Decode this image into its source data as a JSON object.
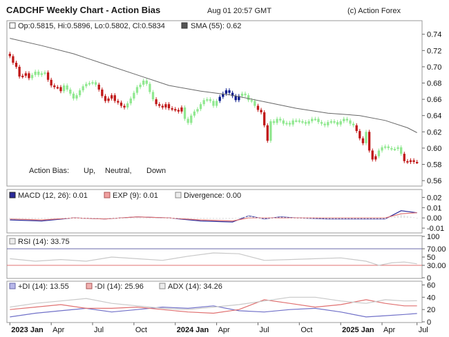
{
  "header": {
    "title": "CADCHF Weekly Chart - Action Bias",
    "timestamp": "Aug 01 20:57 GMT",
    "copyright": "(c) Action Forex"
  },
  "colors": {
    "up": "#0a1a8c",
    "neutral": "#90e890",
    "down": "#c01818",
    "sma": "#666666",
    "macd": "#2a2a9a",
    "macd_signal": "#e07070",
    "rsi": "#c8c8c8",
    "rsi_ref": "#6a6aa8",
    "plus_di": "#7070c8",
    "minus_di": "#e07070",
    "adx": "#c8c8c8",
    "frame": "#999999"
  },
  "x_axis": {
    "labels": [
      "2023 Jan",
      "Apr",
      "Jul",
      "Oct",
      "2024 Jan",
      "Apr",
      "Jul",
      "Oct",
      "2025 Jan",
      "Apr",
      "Jul"
    ]
  },
  "chart_data": [
    {
      "type": "ohlc",
      "name": "price",
      "legend": {
        "ohlc": "Op:0.5815, Hi:0.5896, Lo:0.5802, Cl:0.5834",
        "sma": "SMA (55): 0.62"
      },
      "bias_legend": {
        "label": "Action Bias:",
        "up": "Up,",
        "neutral": "Neutral,",
        "down": "Down"
      },
      "y_ticks": [
        "0.74",
        "0.72",
        "0.70",
        "0.68",
        "0.66",
        "0.64",
        "0.62",
        "0.60",
        "0.58",
        "0.56"
      ],
      "ylim": [
        0.555,
        0.755
      ],
      "closes": [
        0.713,
        0.705,
        0.7,
        0.688,
        0.689,
        0.692,
        0.686,
        0.69,
        0.694,
        0.69,
        0.692,
        0.693,
        0.684,
        0.677,
        0.675,
        0.675,
        0.67,
        0.677,
        0.672,
        0.667,
        0.661,
        0.665,
        0.671,
        0.676,
        0.679,
        0.68,
        0.681,
        0.678,
        0.672,
        0.664,
        0.658,
        0.661,
        0.665,
        0.658,
        0.656,
        0.652,
        0.65,
        0.655,
        0.661,
        0.668,
        0.675,
        0.678,
        0.683,
        0.679,
        0.669,
        0.66,
        0.654,
        0.652,
        0.65,
        0.654,
        0.649,
        0.648,
        0.647,
        0.645,
        0.65,
        0.636,
        0.631,
        0.64,
        0.645,
        0.648,
        0.654,
        0.659,
        0.66,
        0.658,
        0.652,
        0.658,
        0.663,
        0.667,
        0.671,
        0.668,
        0.664,
        0.659,
        0.664,
        0.667,
        0.665,
        0.659,
        0.658,
        0.652,
        0.647,
        0.644,
        0.628,
        0.609,
        0.633,
        0.631,
        0.636,
        0.634,
        0.63,
        0.631,
        0.629,
        0.634,
        0.634,
        0.633,
        0.632,
        0.63,
        0.633,
        0.636,
        0.636,
        0.632,
        0.63,
        0.628,
        0.632,
        0.633,
        0.632,
        0.629,
        0.633,
        0.636,
        0.634,
        0.63,
        0.628,
        0.621,
        0.612,
        0.606,
        0.62,
        0.597,
        0.586,
        0.59,
        0.597,
        0.601,
        0.602,
        0.6,
        0.599,
        0.599,
        0.601,
        0.593,
        0.584,
        0.583,
        0.585,
        0.583,
        0.583
      ],
      "bias": [
        "D",
        "D",
        "D",
        "D",
        "D",
        "D",
        "D",
        "N",
        "N",
        "N",
        "N",
        "N",
        "D",
        "D",
        "D",
        "D",
        "D",
        "N",
        "N",
        "N",
        "N",
        "N",
        "N",
        "N",
        "N",
        "N",
        "N",
        "N",
        "D",
        "D",
        "D",
        "D",
        "D",
        "D",
        "D",
        "D",
        "D",
        "N",
        "N",
        "N",
        "N",
        "N",
        "N",
        "N",
        "N",
        "N",
        "D",
        "D",
        "D",
        "D",
        "D",
        "D",
        "D",
        "D",
        "D",
        "N",
        "N",
        "N",
        "N",
        "N",
        "N",
        "N",
        "N",
        "N",
        "N",
        "N",
        "U",
        "U",
        "U",
        "U",
        "U",
        "U",
        "U",
        "N",
        "N",
        "N",
        "N",
        "N",
        "D",
        "D",
        "D",
        "D",
        "N",
        "N",
        "N",
        "N",
        "N",
        "N",
        "N",
        "N",
        "N",
        "N",
        "N",
        "N",
        "N",
        "N",
        "N",
        "N",
        "N",
        "N",
        "N",
        "N",
        "N",
        "N",
        "N",
        "N",
        "N",
        "N",
        "N",
        "D",
        "D",
        "D",
        "N",
        "D",
        "D",
        "D",
        "N",
        "N",
        "N",
        "N",
        "N",
        "N",
        "N",
        "N",
        "D",
        "D",
        "D",
        "D",
        "D"
      ],
      "sma": {
        "x": [
          0,
          10,
          20,
          30,
          40,
          50,
          60,
          70,
          80,
          90,
          100,
          110,
          118,
          125,
          128
        ],
        "values": [
          0.735,
          0.726,
          0.716,
          0.703,
          0.69,
          0.677,
          0.67,
          0.665,
          0.657,
          0.649,
          0.643,
          0.64,
          0.634,
          0.625,
          0.619
        ]
      }
    },
    {
      "type": "line",
      "name": "macd",
      "legend": {
        "macd": "MACD (12, 26): 0.01",
        "exp": "EXP (9): 0.01",
        "divergence": "Divergence: 0.00"
      },
      "y_ticks": [
        "0.02",
        "0.01",
        "0.00",
        "-0.01"
      ],
      "ylim": [
        -0.014,
        0.027
      ],
      "x": [
        0,
        10,
        20,
        30,
        40,
        50,
        60,
        70,
        75,
        80,
        85,
        90,
        100,
        110,
        118,
        123,
        128
      ],
      "series": [
        {
          "name": "MACD (12, 26)",
          "values": [
            -0.002,
            -0.003,
            0.0,
            -0.001,
            0.001,
            0.0,
            -0.003,
            -0.004,
            0.002,
            -0.001,
            0.001,
            0.0,
            -0.001,
            -0.001,
            -0.001,
            0.007,
            0.005
          ]
        },
        {
          "name": "EXP (9)",
          "values": [
            -0.001,
            -0.002,
            0.0,
            -0.001,
            0.001,
            0.0,
            -0.002,
            -0.003,
            0.0,
            0.0,
            0.0,
            0.0,
            0.0,
            0.0,
            0.0,
            0.004,
            0.005
          ]
        }
      ]
    },
    {
      "type": "line",
      "name": "rsi",
      "legend": {
        "rsi": "RSI (14): 33.75"
      },
      "y_ticks": [
        "100",
        "70.00",
        "50",
        "30.00",
        "0"
      ],
      "ylim": [
        0,
        100
      ],
      "reference_lines": [
        70,
        30
      ],
      "x": [
        0,
        8,
        16,
        24,
        32,
        40,
        48,
        56,
        64,
        72,
        80,
        88,
        96,
        104,
        112,
        116,
        120,
        124,
        128
      ],
      "series": [
        {
          "name": "RSI (14)",
          "values": [
            46,
            40,
            44,
            40,
            50,
            46,
            42,
            52,
            60,
            58,
            42,
            44,
            46,
            48,
            40,
            30,
            36,
            38,
            33.75
          ]
        }
      ]
    },
    {
      "type": "line",
      "name": "dmi",
      "legend": {
        "plus_di": "+DI (14): 13.55",
        "minus_di": "-DI (14): 25.96",
        "adx": "ADX (14): 34.26"
      },
      "y_ticks": [
        "60",
        "40",
        "20",
        "0"
      ],
      "ylim": [
        0,
        65
      ],
      "x": [
        0,
        8,
        16,
        24,
        32,
        40,
        48,
        56,
        64,
        72,
        80,
        88,
        96,
        104,
        112,
        118,
        124,
        128
      ],
      "series": [
        {
          "name": "+DI (14)",
          "values": [
            8,
            14,
            18,
            22,
            16,
            20,
            24,
            22,
            26,
            18,
            16,
            20,
            22,
            16,
            8,
            10,
            12,
            13.55
          ]
        },
        {
          "name": "-DI (14)",
          "values": [
            20,
            24,
            28,
            22,
            22,
            24,
            20,
            16,
            14,
            20,
            36,
            30,
            24,
            28,
            36,
            30,
            26,
            25.96
          ]
        },
        {
          "name": "ADX (14)",
          "values": [
            24,
            30,
            34,
            38,
            30,
            26,
            22,
            20,
            24,
            28,
            34,
            40,
            40,
            34,
            30,
            36,
            34,
            34.26
          ]
        }
      ]
    }
  ]
}
